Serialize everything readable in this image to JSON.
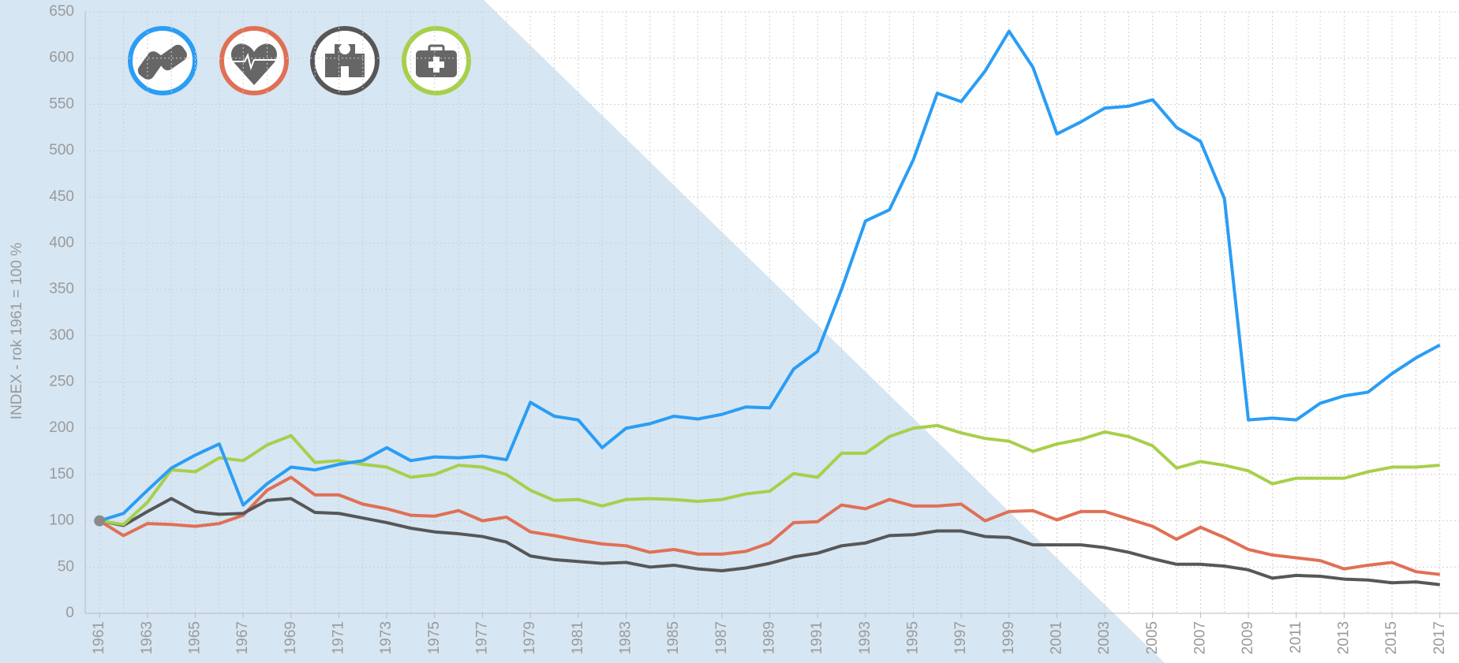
{
  "chart_data": {
    "type": "line",
    "y_label": "INDEX - rok 1961 = 100 %",
    "x": [
      1961,
      1962,
      1963,
      1964,
      1965,
      1966,
      1967,
      1968,
      1969,
      1970,
      1971,
      1972,
      1973,
      1974,
      1975,
      1976,
      1977,
      1978,
      1979,
      1980,
      1981,
      1982,
      1983,
      1984,
      1985,
      1986,
      1987,
      1988,
      1989,
      1990,
      1991,
      1992,
      1993,
      1994,
      1995,
      1996,
      1997,
      1998,
      1999,
      2000,
      2001,
      2002,
      2003,
      2004,
      2005,
      2006,
      2007,
      2008,
      2009,
      2010,
      2011,
      2012,
      2013,
      2014,
      2015,
      2016,
      2017
    ],
    "xlim": [
      1960.4,
      2017.8
    ],
    "xticks": [
      1961,
      1963,
      1965,
      1967,
      1969,
      1971,
      1973,
      1975,
      1977,
      1979,
      1981,
      1983,
      1985,
      1987,
      1989,
      1991,
      1993,
      1995,
      1997,
      1999,
      2001,
      2003,
      2005,
      2007,
      2009,
      2011,
      2013,
      2015,
      2017
    ],
    "ylim": [
      0,
      650
    ],
    "yticks": [
      0,
      50,
      100,
      150,
      200,
      250,
      300,
      350,
      400,
      450,
      500,
      550,
      600,
      650
    ],
    "grid": true,
    "series": [
      {
        "color": "#e07055",
        "values": [
          100,
          84,
          97,
          96,
          94,
          97,
          106,
          133,
          147,
          128,
          128,
          118,
          113,
          106,
          105,
          111,
          100,
          104,
          88,
          84,
          79,
          75,
          73,
          66,
          69,
          64,
          64,
          67,
          76,
          98,
          99,
          117,
          113,
          123,
          116,
          116,
          118,
          100,
          110,
          111,
          101,
          110,
          110,
          102,
          94,
          80,
          93,
          82,
          69,
          63,
          60,
          57,
          48,
          52,
          55,
          45,
          42
        ]
      },
      {
        "color": "#575757",
        "values": [
          100,
          95,
          110,
          124,
          110,
          107,
          108,
          122,
          124,
          109,
          108,
          103,
          98,
          92,
          88,
          86,
          83,
          77,
          62,
          58,
          56,
          54,
          55,
          50,
          52,
          48,
          46,
          49,
          54,
          61,
          65,
          73,
          76,
          84,
          85,
          89,
          89,
          83,
          82,
          74,
          74,
          74,
          71,
          66,
          59,
          53,
          53,
          51,
          47,
          38,
          41,
          40,
          37,
          36,
          33,
          34,
          31
        ]
      },
      {
        "color": "#a8cf4a",
        "values": [
          100,
          96,
          120,
          155,
          153,
          168,
          165,
          182,
          192,
          163,
          165,
          161,
          158,
          147,
          150,
          160,
          158,
          150,
          133,
          122,
          123,
          116,
          123,
          124,
          123,
          121,
          123,
          129,
          132,
          151,
          147,
          173,
          173,
          191,
          200,
          203,
          195,
          189,
          186,
          175,
          183,
          188,
          196,
          191,
          181,
          157,
          164,
          160,
          154,
          140,
          146,
          146,
          146,
          153,
          158,
          158,
          160
        ]
      },
      {
        "color": "#2a9df4",
        "values": [
          100,
          108,
          133,
          157,
          171,
          183,
          117,
          140,
          158,
          155,
          161,
          165,
          179,
          165,
          169,
          168,
          170,
          166,
          228,
          213,
          209,
          179,
          200,
          205,
          213,
          210,
          215,
          223,
          222,
          264,
          283,
          350,
          424,
          436,
          490,
          562,
          553,
          586,
          629,
          590,
          518,
          531,
          546,
          548,
          555,
          525,
          510,
          448,
          209,
          211,
          209,
          227,
          235,
          239,
          259,
          276,
          290
        ]
      }
    ]
  }
}
